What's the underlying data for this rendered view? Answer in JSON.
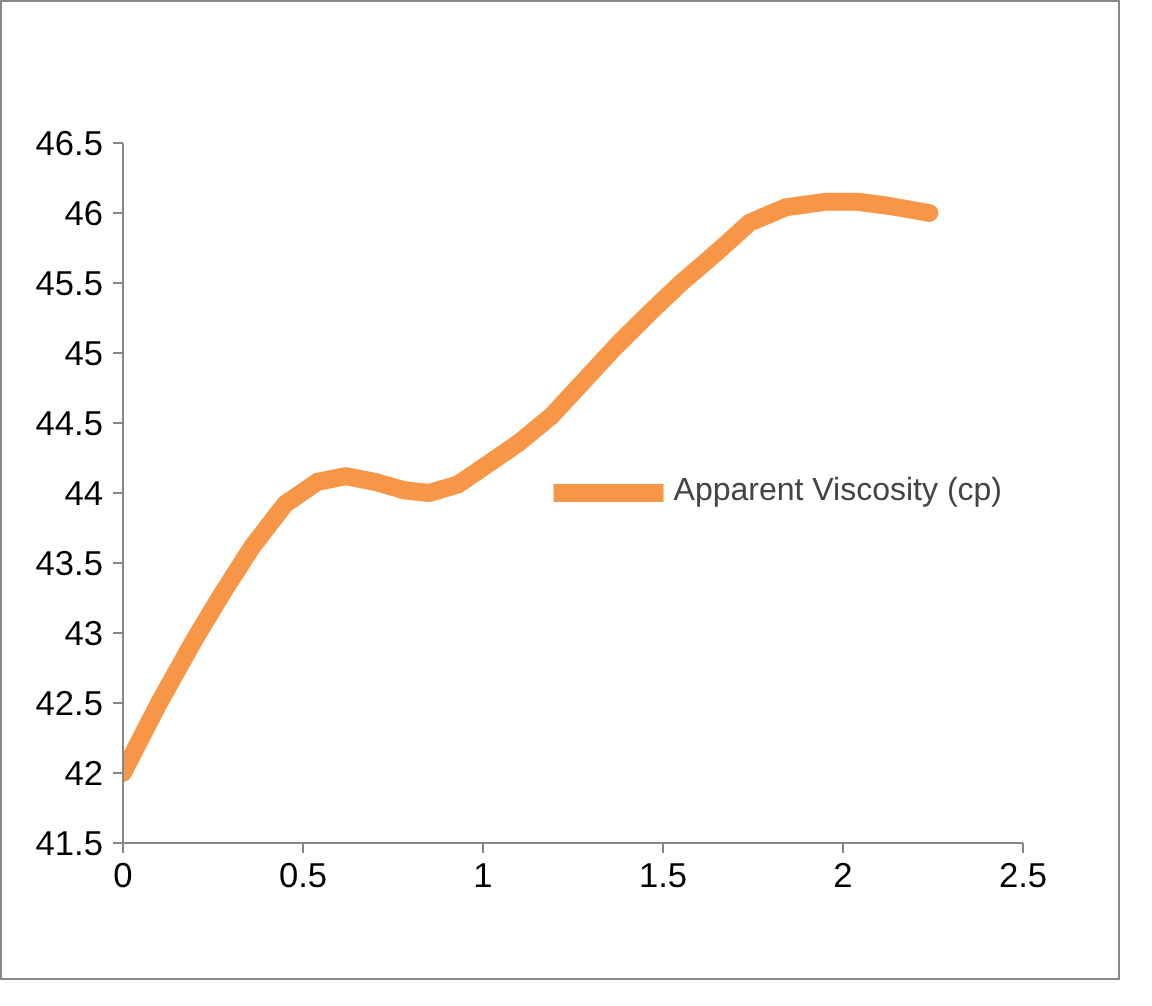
{
  "chart_data": {
    "type": "line",
    "x": [
      0,
      0.1,
      0.2,
      0.28,
      0.36,
      0.45,
      0.54,
      0.62,
      0.7,
      0.78,
      0.85,
      0.93,
      1.01,
      1.1,
      1.19,
      1.28,
      1.37,
      1.46,
      1.55,
      1.65,
      1.74,
      1.84,
      1.95,
      2.04,
      2.13,
      2.24
    ],
    "series": [
      {
        "name": "Apparent Viscosity (cp)",
        "color": "#f79646",
        "values": [
          42,
          42.5,
          42.96,
          43.3,
          43.62,
          43.92,
          44.08,
          44.12,
          44.08,
          44.02,
          44,
          44.06,
          44.2,
          44.36,
          44.55,
          44.8,
          45.05,
          45.28,
          45.5,
          45.72,
          45.93,
          46.04,
          46.08,
          46.08,
          46.05,
          46
        ]
      }
    ],
    "xlim": [
      0,
      2.5
    ],
    "xticks": [
      0,
      {
        "value": 0.5,
        "label": "0.5"
      },
      1,
      {
        "value": 1.5,
        "label": "1.5"
      },
      2,
      {
        "value": 2.5,
        "label": "2.5"
      }
    ],
    "ylim": [
      41.5,
      46.5
    ],
    "yticks": [
      {
        "value": 41.5,
        "label": "41.5"
      },
      42,
      {
        "value": 42.5,
        "label": "42.5"
      },
      43,
      {
        "value": 43.5,
        "label": "43.5"
      },
      44,
      {
        "value": 44.5,
        "label": "44.5"
      },
      45,
      {
        "value": 45.5,
        "label": "45.5"
      },
      46,
      {
        "value": 46.5,
        "label": "46.5"
      }
    ],
    "grid": false,
    "legend": "right",
    "line_style": "solid"
  }
}
